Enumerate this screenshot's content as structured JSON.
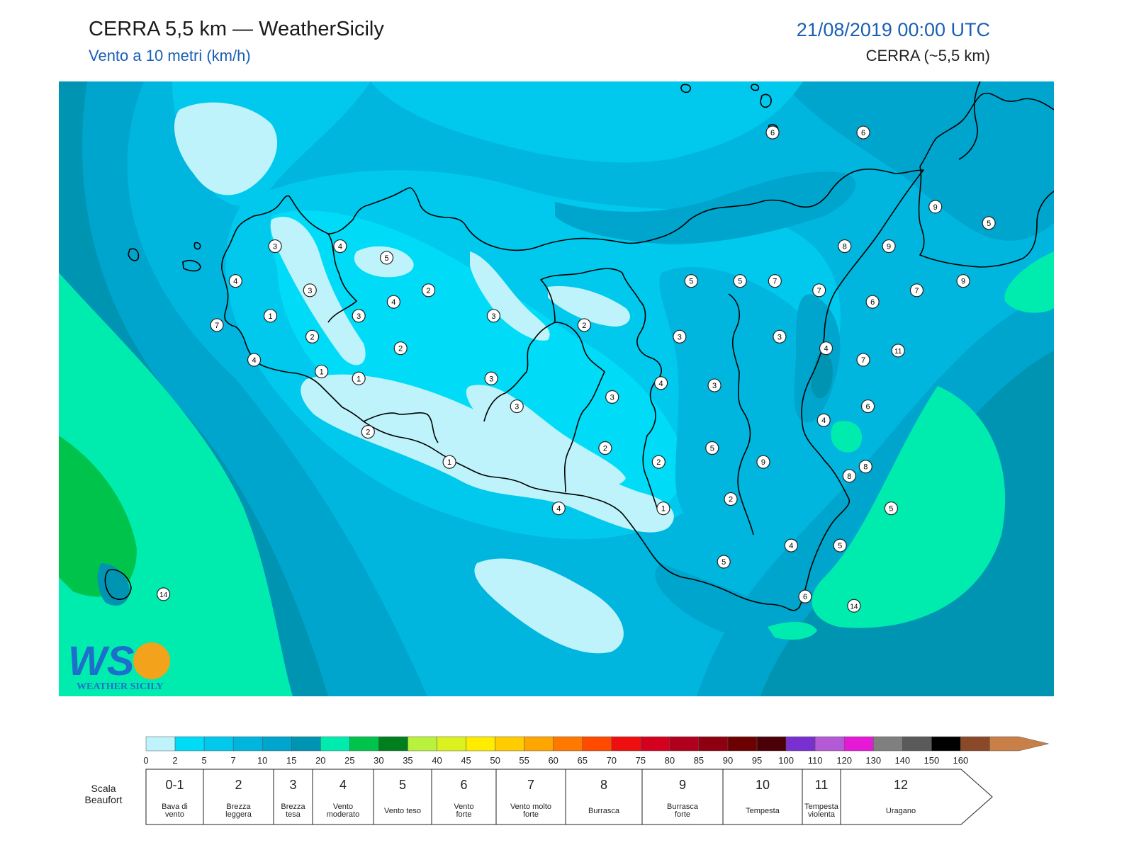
{
  "header": {
    "title": "CERRA 5,5 km — WeatherSicily",
    "subtitle": "Vento a 10 metri (km/h)",
    "datetime": "21/08/2019 00:00 UTC",
    "model": "CERRA (~5,5 km)"
  },
  "logo": {
    "letters": "WS",
    "caption": "WEATHER SICILY"
  },
  "colors": {
    "c0": "#bef3fb",
    "c2": "#00dcf7",
    "c5": "#00c9ed",
    "c7": "#00b6df",
    "c10": "#00a5cd",
    "c15": "#0094b3",
    "c20": "#00ecae",
    "c25": "#00c34c",
    "c30": "#007f1f",
    "coast": "#000000"
  },
  "legend": {
    "scale_ticks": [
      "0",
      "2",
      "5",
      "7",
      "10",
      "15",
      "20",
      "25",
      "30",
      "35",
      "40",
      "45",
      "50",
      "55",
      "60",
      "65",
      "70",
      "75",
      "80",
      "85",
      "90",
      "95",
      "100",
      "110",
      "120",
      "130",
      "140",
      "150",
      "160"
    ],
    "scale_colors": [
      "#bef3fb",
      "#00dcf7",
      "#00c9ed",
      "#00b6df",
      "#00a5cd",
      "#0094b3",
      "#00ecae",
      "#00c34c",
      "#007f1f",
      "#b8f23c",
      "#dcf21e",
      "#ffed00",
      "#ffcc00",
      "#ffa500",
      "#ff7800",
      "#ff4a00",
      "#ee1010",
      "#d40020",
      "#b0001c",
      "#8e0010",
      "#6d0000",
      "#4a0006",
      "#7a30d0",
      "#b45ad6",
      "#e61ad6",
      "#7f7f7f",
      "#5a5a5a",
      "#000000",
      "#8a4a2a",
      "#c88048"
    ],
    "beaufort_label": "Scala\nBeaufort",
    "beaufort": [
      {
        "force": "0-1",
        "desc": "Bava di\nvento"
      },
      {
        "force": "2",
        "desc": "Brezza\nleggera"
      },
      {
        "force": "3",
        "desc": "Brezza\ntesa"
      },
      {
        "force": "4",
        "desc": "Vento\nmoderato"
      },
      {
        "force": "5",
        "desc": "Vento teso"
      },
      {
        "force": "6",
        "desc": "Vento\nforte"
      },
      {
        "force": "7",
        "desc": "Vento molto\nforte"
      },
      {
        "force": "8",
        "desc": "Burrasca"
      },
      {
        "force": "9",
        "desc": "Burrasca\nforte"
      },
      {
        "force": "10",
        "desc": "Tempesta"
      },
      {
        "force": "11",
        "desc": "Tempesta\nviolenta"
      },
      {
        "force": "12",
        "desc": "Uragano"
      }
    ]
  },
  "stations": [
    {
      "v": "6",
      "lon": 14.85,
      "lat": 38.78
    },
    {
      "v": "6",
      "lon": 15.24,
      "lat": 38.78
    },
    {
      "v": "9",
      "lon": 15.55,
      "lat": 38.46
    },
    {
      "v": "5",
      "lon": 15.78,
      "lat": 38.39
    },
    {
      "v": "8",
      "lon": 15.16,
      "lat": 38.29
    },
    {
      "v": "9",
      "lon": 15.35,
      "lat": 38.29
    },
    {
      "v": "3",
      "lon": 12.71,
      "lat": 38.29
    },
    {
      "v": "4",
      "lon": 12.99,
      "lat": 38.29
    },
    {
      "v": "5",
      "lon": 13.19,
      "lat": 38.24
    },
    {
      "v": "4",
      "lon": 12.54,
      "lat": 38.14
    },
    {
      "v": "5",
      "lon": 14.5,
      "lat": 38.14
    },
    {
      "v": "5",
      "lon": 14.71,
      "lat": 38.14
    },
    {
      "v": "7",
      "lon": 14.86,
      "lat": 38.14
    },
    {
      "v": "9",
      "lon": 15.67,
      "lat": 38.14
    },
    {
      "v": "3",
      "lon": 12.86,
      "lat": 38.1
    },
    {
      "v": "2",
      "lon": 13.37,
      "lat": 38.1
    },
    {
      "v": "7",
      "lon": 15.05,
      "lat": 38.1
    },
    {
      "v": "7",
      "lon": 15.47,
      "lat": 38.1
    },
    {
      "v": "4",
      "lon": 13.22,
      "lat": 38.05
    },
    {
      "v": "6",
      "lon": 15.28,
      "lat": 38.05
    },
    {
      "v": "1",
      "lon": 12.69,
      "lat": 37.99
    },
    {
      "v": "3",
      "lon": 13.07,
      "lat": 37.99
    },
    {
      "v": "3",
      "lon": 13.65,
      "lat": 37.99
    },
    {
      "v": "7",
      "lon": 12.46,
      "lat": 37.95
    },
    {
      "v": "2",
      "lon": 14.04,
      "lat": 37.95
    },
    {
      "v": "2",
      "lon": 12.87,
      "lat": 37.9
    },
    {
      "v": "3",
      "lon": 14.45,
      "lat": 37.9
    },
    {
      "v": "3",
      "lon": 14.88,
      "lat": 37.9
    },
    {
      "v": "2",
      "lon": 13.25,
      "lat": 37.85
    },
    {
      "v": "4",
      "lon": 15.08,
      "lat": 37.85
    },
    {
      "v": "11",
      "lon": 15.39,
      "lat": 37.84
    },
    {
      "v": "4",
      "lon": 12.62,
      "lat": 37.8
    },
    {
      "v": "7",
      "lon": 15.24,
      "lat": 37.8
    },
    {
      "v": "1",
      "lon": 12.91,
      "lat": 37.75
    },
    {
      "v": "1",
      "lon": 13.07,
      "lat": 37.72
    },
    {
      "v": "3",
      "lon": 13.64,
      "lat": 37.72
    },
    {
      "v": "4",
      "lon": 14.37,
      "lat": 37.7
    },
    {
      "v": "3",
      "lon": 14.6,
      "lat": 37.69
    },
    {
      "v": "3",
      "lon": 14.16,
      "lat": 37.64
    },
    {
      "v": "3",
      "lon": 13.75,
      "lat": 37.6
    },
    {
      "v": "6",
      "lon": 15.26,
      "lat": 37.6
    },
    {
      "v": "4",
      "lon": 15.07,
      "lat": 37.54
    },
    {
      "v": "2",
      "lon": 13.11,
      "lat": 37.49
    },
    {
      "v": "5",
      "lon": 14.59,
      "lat": 37.42
    },
    {
      "v": "2",
      "lon": 14.13,
      "lat": 37.42
    },
    {
      "v": "9",
      "lon": 14.81,
      "lat": 37.36
    },
    {
      "v": "1",
      "lon": 13.46,
      "lat": 37.36
    },
    {
      "v": "2",
      "lon": 14.36,
      "lat": 37.36
    },
    {
      "v": "8",
      "lon": 15.25,
      "lat": 37.34
    },
    {
      "v": "8",
      "lon": 15.18,
      "lat": 37.3
    },
    {
      "v": "2",
      "lon": 14.67,
      "lat": 37.2
    },
    {
      "v": "4",
      "lon": 13.93,
      "lat": 37.16
    },
    {
      "v": "1",
      "lon": 14.38,
      "lat": 37.16
    },
    {
      "v": "5",
      "lon": 15.36,
      "lat": 37.16
    },
    {
      "v": "4",
      "lon": 14.93,
      "lat": 37.0
    },
    {
      "v": "5",
      "lon": 15.14,
      "lat": 37.0
    },
    {
      "v": "5",
      "lon": 14.64,
      "lat": 36.93
    },
    {
      "v": "14",
      "lon": 12.23,
      "lat": 36.79
    },
    {
      "v": "6",
      "lon": 14.99,
      "lat": 36.78
    },
    {
      "v": "14",
      "lon": 15.2,
      "lat": 36.74
    }
  ]
}
